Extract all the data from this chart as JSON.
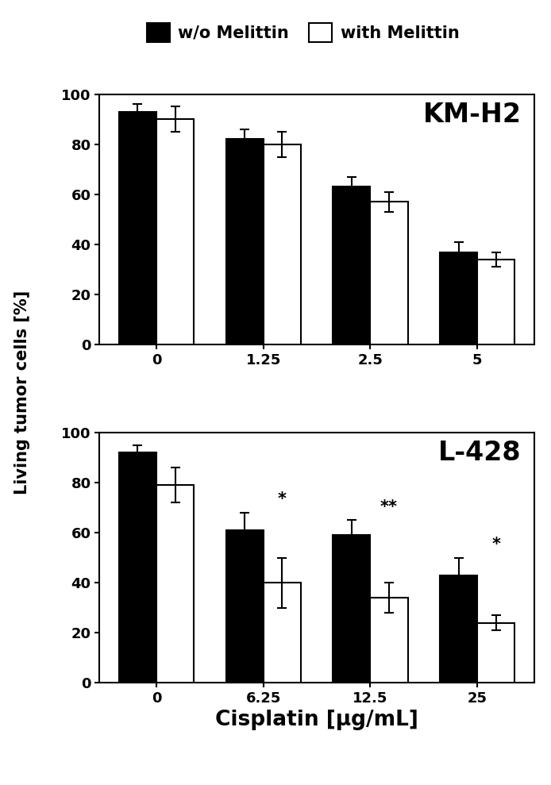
{
  "panel1": {
    "title": "KM-H2",
    "x_labels": [
      "0",
      "1.25",
      "2.5",
      "5"
    ],
    "wo_mel": [
      93,
      82,
      63,
      37
    ],
    "with_mel": [
      90,
      80,
      57,
      34
    ],
    "wo_mel_err": [
      3,
      4,
      4,
      4
    ],
    "with_mel_err": [
      5,
      5,
      4,
      3
    ],
    "significance": [
      "",
      "",
      "",
      ""
    ]
  },
  "panel2": {
    "title": "L-428",
    "x_labels": [
      "0",
      "6.25",
      "12.5",
      "25"
    ],
    "wo_mel": [
      92,
      61,
      59,
      43
    ],
    "with_mel": [
      79,
      40,
      34,
      24
    ],
    "wo_mel_err": [
      3,
      7,
      6,
      7
    ],
    "with_mel_err": [
      7,
      10,
      6,
      3
    ],
    "significance": [
      "",
      "*",
      "**",
      "*"
    ]
  },
  "ylabel": "Living tumor cells [%]",
  "xlabel": "Cisplatin [µg/mL]",
  "legend_wo": "w/o Melittin",
  "legend_with": "with Melittin",
  "bar_width": 0.35,
  "ylim": [
    0,
    100
  ],
  "yticks": [
    0,
    20,
    40,
    60,
    80,
    100
  ],
  "color_wo": "#000000",
  "color_with": "#ffffff",
  "color_edge": "#000000",
  "bg_color": "#ffffff",
  "title_fontsize": 24,
  "label_fontsize": 15,
  "tick_fontsize": 13,
  "legend_fontsize": 15,
  "sig_fontsize": 15
}
